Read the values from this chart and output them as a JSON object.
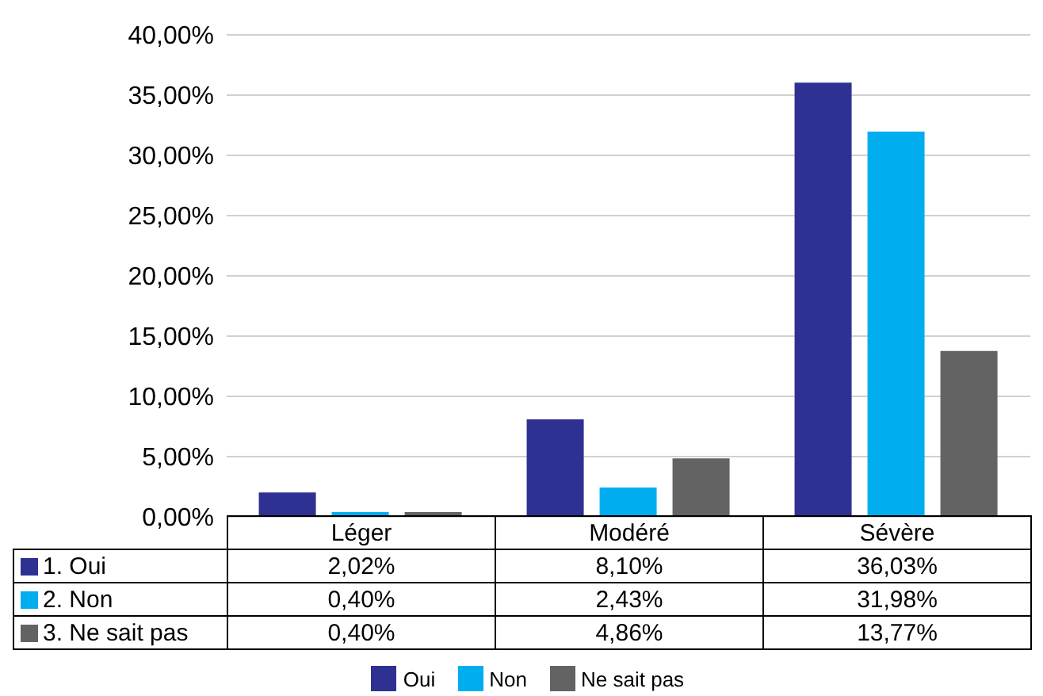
{
  "chart_data": {
    "type": "bar",
    "categories": [
      "Léger",
      "Modéré",
      "Sévère"
    ],
    "series": [
      {
        "name": "Oui",
        "color": "#2e3192",
        "values": [
          2.02,
          8.1,
          36.03
        ],
        "value_labels": [
          "2,02%",
          "8,10%",
          "36,03%"
        ]
      },
      {
        "name": "Non",
        "color": "#00aeef",
        "values": [
          0.4,
          2.43,
          31.98
        ],
        "value_labels": [
          "0,40%",
          "2,43%",
          "31,98%"
        ]
      },
      {
        "name": "Ne sait pas",
        "color": "#636363",
        "values": [
          0.4,
          4.86,
          13.77
        ],
        "value_labels": [
          "0,40%",
          "4,86%",
          "13,77%"
        ]
      }
    ],
    "annotations": [
      "1. Oui",
      "2. Non",
      "3. Ne sait pas"
    ],
    "ylim": [
      0,
      40
    ],
    "yticks": [
      {
        "value": 0,
        "label": "0,00%"
      },
      {
        "value": 5,
        "label": "5,00%"
      },
      {
        "value": 10,
        "label": "10,00%"
      },
      {
        "value": 15,
        "label": "15,00%"
      },
      {
        "value": 20,
        "label": "20,00%"
      },
      {
        "value": 25,
        "label": "25,00%"
      },
      {
        "value": 30,
        "label": "30,00%"
      },
      {
        "value": 35,
        "label": "35,00%"
      },
      {
        "value": 40,
        "label": "40,00%"
      }
    ],
    "grid": "y",
    "legend": "bottom"
  }
}
